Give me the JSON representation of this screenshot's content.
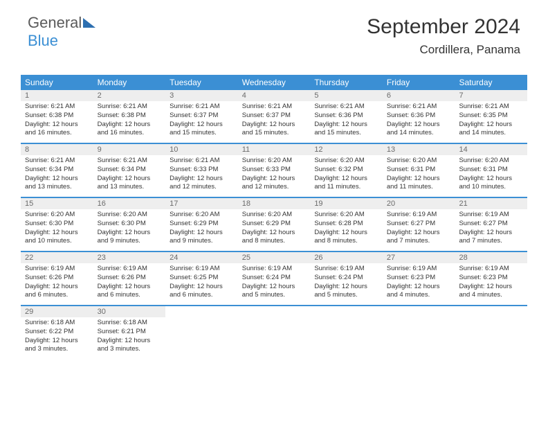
{
  "logo": {
    "part1": "General",
    "part2": "Blue"
  },
  "title": "September 2024",
  "subtitle": "Cordillera, Panama",
  "colors": {
    "header_bg": "#3b8fd4",
    "header_text": "#ffffff",
    "daynum_bg": "#eeeeee",
    "daynum_text": "#6a6a6a",
    "body_text": "#333333",
    "rule": "#3b8fd4"
  },
  "day_headers": [
    "Sunday",
    "Monday",
    "Tuesday",
    "Wednesday",
    "Thursday",
    "Friday",
    "Saturday"
  ],
  "weeks": [
    [
      {
        "n": "1",
        "sr": "Sunrise: 6:21 AM",
        "ss": "Sunset: 6:38 PM",
        "d1": "Daylight: 12 hours",
        "d2": "and 16 minutes."
      },
      {
        "n": "2",
        "sr": "Sunrise: 6:21 AM",
        "ss": "Sunset: 6:38 PM",
        "d1": "Daylight: 12 hours",
        "d2": "and 16 minutes."
      },
      {
        "n": "3",
        "sr": "Sunrise: 6:21 AM",
        "ss": "Sunset: 6:37 PM",
        "d1": "Daylight: 12 hours",
        "d2": "and 15 minutes."
      },
      {
        "n": "4",
        "sr": "Sunrise: 6:21 AM",
        "ss": "Sunset: 6:37 PM",
        "d1": "Daylight: 12 hours",
        "d2": "and 15 minutes."
      },
      {
        "n": "5",
        "sr": "Sunrise: 6:21 AM",
        "ss": "Sunset: 6:36 PM",
        "d1": "Daylight: 12 hours",
        "d2": "and 15 minutes."
      },
      {
        "n": "6",
        "sr": "Sunrise: 6:21 AM",
        "ss": "Sunset: 6:36 PM",
        "d1": "Daylight: 12 hours",
        "d2": "and 14 minutes."
      },
      {
        "n": "7",
        "sr": "Sunrise: 6:21 AM",
        "ss": "Sunset: 6:35 PM",
        "d1": "Daylight: 12 hours",
        "d2": "and 14 minutes."
      }
    ],
    [
      {
        "n": "8",
        "sr": "Sunrise: 6:21 AM",
        "ss": "Sunset: 6:34 PM",
        "d1": "Daylight: 12 hours",
        "d2": "and 13 minutes."
      },
      {
        "n": "9",
        "sr": "Sunrise: 6:21 AM",
        "ss": "Sunset: 6:34 PM",
        "d1": "Daylight: 12 hours",
        "d2": "and 13 minutes."
      },
      {
        "n": "10",
        "sr": "Sunrise: 6:21 AM",
        "ss": "Sunset: 6:33 PM",
        "d1": "Daylight: 12 hours",
        "d2": "and 12 minutes."
      },
      {
        "n": "11",
        "sr": "Sunrise: 6:20 AM",
        "ss": "Sunset: 6:33 PM",
        "d1": "Daylight: 12 hours",
        "d2": "and 12 minutes."
      },
      {
        "n": "12",
        "sr": "Sunrise: 6:20 AM",
        "ss": "Sunset: 6:32 PM",
        "d1": "Daylight: 12 hours",
        "d2": "and 11 minutes."
      },
      {
        "n": "13",
        "sr": "Sunrise: 6:20 AM",
        "ss": "Sunset: 6:31 PM",
        "d1": "Daylight: 12 hours",
        "d2": "and 11 minutes."
      },
      {
        "n": "14",
        "sr": "Sunrise: 6:20 AM",
        "ss": "Sunset: 6:31 PM",
        "d1": "Daylight: 12 hours",
        "d2": "and 10 minutes."
      }
    ],
    [
      {
        "n": "15",
        "sr": "Sunrise: 6:20 AM",
        "ss": "Sunset: 6:30 PM",
        "d1": "Daylight: 12 hours",
        "d2": "and 10 minutes."
      },
      {
        "n": "16",
        "sr": "Sunrise: 6:20 AM",
        "ss": "Sunset: 6:30 PM",
        "d1": "Daylight: 12 hours",
        "d2": "and 9 minutes."
      },
      {
        "n": "17",
        "sr": "Sunrise: 6:20 AM",
        "ss": "Sunset: 6:29 PM",
        "d1": "Daylight: 12 hours",
        "d2": "and 9 minutes."
      },
      {
        "n": "18",
        "sr": "Sunrise: 6:20 AM",
        "ss": "Sunset: 6:29 PM",
        "d1": "Daylight: 12 hours",
        "d2": "and 8 minutes."
      },
      {
        "n": "19",
        "sr": "Sunrise: 6:20 AM",
        "ss": "Sunset: 6:28 PM",
        "d1": "Daylight: 12 hours",
        "d2": "and 8 minutes."
      },
      {
        "n": "20",
        "sr": "Sunrise: 6:19 AM",
        "ss": "Sunset: 6:27 PM",
        "d1": "Daylight: 12 hours",
        "d2": "and 7 minutes."
      },
      {
        "n": "21",
        "sr": "Sunrise: 6:19 AM",
        "ss": "Sunset: 6:27 PM",
        "d1": "Daylight: 12 hours",
        "d2": "and 7 minutes."
      }
    ],
    [
      {
        "n": "22",
        "sr": "Sunrise: 6:19 AM",
        "ss": "Sunset: 6:26 PM",
        "d1": "Daylight: 12 hours",
        "d2": "and 6 minutes."
      },
      {
        "n": "23",
        "sr": "Sunrise: 6:19 AM",
        "ss": "Sunset: 6:26 PM",
        "d1": "Daylight: 12 hours",
        "d2": "and 6 minutes."
      },
      {
        "n": "24",
        "sr": "Sunrise: 6:19 AM",
        "ss": "Sunset: 6:25 PM",
        "d1": "Daylight: 12 hours",
        "d2": "and 6 minutes."
      },
      {
        "n": "25",
        "sr": "Sunrise: 6:19 AM",
        "ss": "Sunset: 6:24 PM",
        "d1": "Daylight: 12 hours",
        "d2": "and 5 minutes."
      },
      {
        "n": "26",
        "sr": "Sunrise: 6:19 AM",
        "ss": "Sunset: 6:24 PM",
        "d1": "Daylight: 12 hours",
        "d2": "and 5 minutes."
      },
      {
        "n": "27",
        "sr": "Sunrise: 6:19 AM",
        "ss": "Sunset: 6:23 PM",
        "d1": "Daylight: 12 hours",
        "d2": "and 4 minutes."
      },
      {
        "n": "28",
        "sr": "Sunrise: 6:19 AM",
        "ss": "Sunset: 6:23 PM",
        "d1": "Daylight: 12 hours",
        "d2": "and 4 minutes."
      }
    ],
    [
      {
        "n": "29",
        "sr": "Sunrise: 6:18 AM",
        "ss": "Sunset: 6:22 PM",
        "d1": "Daylight: 12 hours",
        "d2": "and 3 minutes."
      },
      {
        "n": "30",
        "sr": "Sunrise: 6:18 AM",
        "ss": "Sunset: 6:21 PM",
        "d1": "Daylight: 12 hours",
        "d2": "and 3 minutes."
      },
      null,
      null,
      null,
      null,
      null
    ]
  ]
}
